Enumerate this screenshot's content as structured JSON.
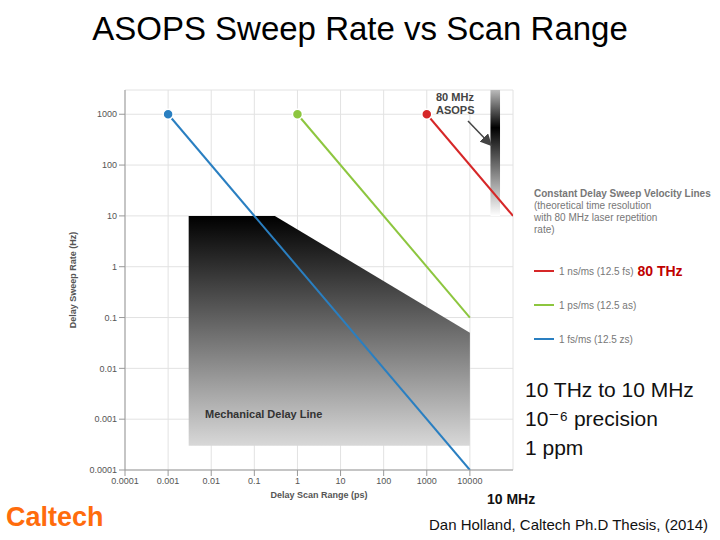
{
  "chart_data": {
    "type": "line",
    "title": "ASOPS Sweep Rate vs Scan Range",
    "x_label": "Delay Scan Range (ps)",
    "y_label": "Delay Sweep Rate (Hz)",
    "log": true,
    "grid": true,
    "xlim": [
      0.0001,
      100000
    ],
    "ylim": [
      0.0001,
      3000
    ],
    "xticks": [
      0.0001,
      0.001,
      0.01,
      0.1,
      1,
      10,
      100,
      1000,
      10000
    ],
    "yticks": [
      0.0001,
      0.001,
      0.01,
      0.1,
      1,
      10,
      100,
      1000
    ],
    "legend": "right",
    "legend_title": "Constant Delay Sweep Velocity Lines",
    "legend_subtitle": "(theoretical time resolution with 80 MHz laser repetition rate)",
    "series": [
      {
        "name": "1 ns/ms (12.5 fs)",
        "color": "#d62728",
        "marker": "circle",
        "x": [
          1000,
          100000
        ],
        "values": [
          1000,
          10
        ],
        "note": {
          "text": "80 THz",
          "color": "#c00000"
        }
      },
      {
        "name": "1 ps/ms (12.5 as)",
        "color": "#8dc63f",
        "marker": "circle",
        "x": [
          1,
          10000
        ],
        "values": [
          1000,
          0.1
        ]
      },
      {
        "name": "1 fs/ms (12.5 zs)",
        "color": "#2a7fc1",
        "marker": "circle",
        "x": [
          0.001,
          10000
        ],
        "values": [
          1000,
          0.0001
        ]
      }
    ],
    "areas": [
      {
        "name": "Mechanical Delay Line",
        "color": "#000000",
        "x": [
          0.003,
          0.3,
          10000
        ],
        "low": [
          0.0003,
          0.0003,
          0.0003
        ],
        "high": [
          10,
          10,
          0.05
        ]
      }
    ],
    "bands": [
      {
        "label": "80 MHz ASOPS",
        "color": "#000000",
        "xlim": [
          30000,
          50000
        ],
        "ylim": [
          10,
          3000
        ]
      }
    ],
    "annotations": {
      "notes": [
        "10 THz to 10 MHz",
        "10⁻⁶ precision",
        "1 ppm"
      ],
      "x_end_note": "10 MHz",
      "logo": {
        "text": "Caltech",
        "color": "#ff6c0c"
      },
      "source": "Dan Holland, Caltech Ph.D Thesis, (2014)"
    }
  }
}
